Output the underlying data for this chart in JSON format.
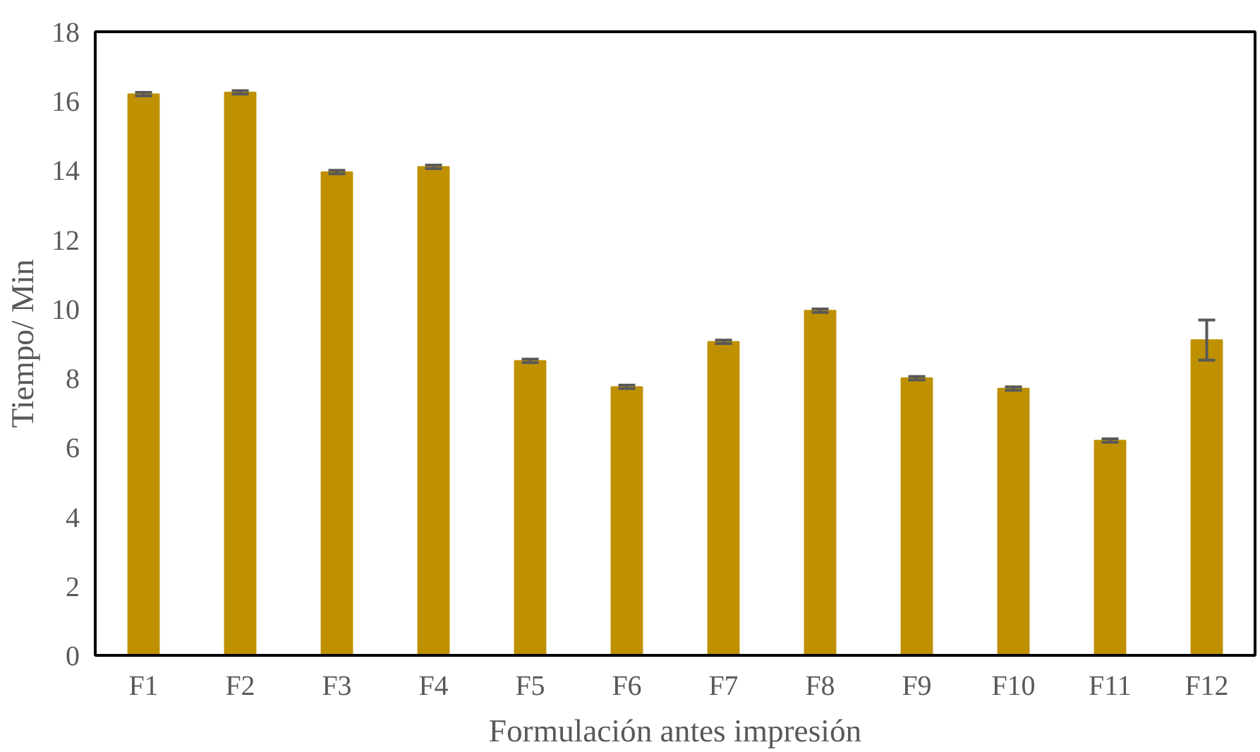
{
  "chart_data": {
    "type": "bar",
    "xlabel": "Formulación antes impresión",
    "ylabel": "Tiempo/ Min",
    "categories": [
      "F1",
      "F2",
      "F3",
      "F4",
      "F5",
      "F6",
      "F7",
      "F8",
      "F9",
      "F10",
      "F11",
      "F12"
    ],
    "values": [
      16.2,
      16.25,
      13.95,
      14.1,
      8.5,
      7.75,
      9.05,
      9.95,
      8.0,
      7.7,
      6.2,
      9.1
    ],
    "errors": [
      0.05,
      0.05,
      0.05,
      0.05,
      0.05,
      0.05,
      0.05,
      0.05,
      0.05,
      0.05,
      0.05,
      0.58
    ],
    "color": "#bf9000",
    "ylim": [
      0,
      18
    ],
    "yticks": [
      0,
      2,
      4,
      6,
      8,
      10,
      12,
      14,
      16,
      18
    ],
    "grid": false
  }
}
